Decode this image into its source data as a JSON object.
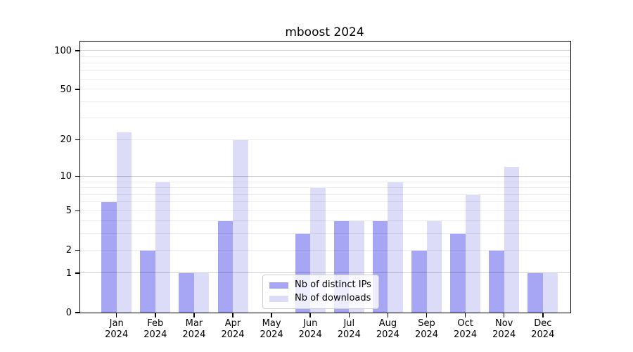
{
  "chart_data": {
    "type": "bar",
    "title": "mboost 2024",
    "months": [
      "Jan",
      "Feb",
      "Mar",
      "Apr",
      "May",
      "Jun",
      "Jul",
      "Aug",
      "Sep",
      "Oct",
      "Nov",
      "Dec"
    ],
    "year": "2024",
    "categories": [
      "Jan 2024",
      "Feb 2024",
      "Mar 2024",
      "Apr 2024",
      "May 2024",
      "Jun 2024",
      "Jul 2024",
      "Aug 2024",
      "Sep 2024",
      "Oct 2024",
      "Nov 2024",
      "Dec 2024"
    ],
    "series": [
      {
        "name": "Nb of distinct IPs",
        "color": "#a6a6f4",
        "values": [
          6,
          2,
          1,
          4,
          0,
          3,
          4,
          4,
          2,
          3,
          2,
          1
        ]
      },
      {
        "name": "Nb of downloads",
        "color": "#dcdcf9",
        "values": [
          23,
          9,
          1,
          20,
          0,
          8,
          4,
          9,
          4,
          7,
          12,
          1
        ]
      }
    ],
    "y_scale": "log1p",
    "y_ticks": [
      0,
      1,
      2,
      5,
      10,
      20,
      50,
      100
    ],
    "grid_major": [
      1,
      10,
      100
    ],
    "grid_minor": [
      2,
      3,
      4,
      5,
      6,
      7,
      8,
      9,
      20,
      30,
      40,
      50,
      60,
      70,
      80,
      90
    ],
    "ylim": [
      0,
      115
    ],
    "xlabel": "",
    "ylabel": "",
    "grid": true,
    "legend_position": "inside-bottom-center",
    "colors": {
      "background": "#ffffff",
      "axis": "#000000",
      "grid_major": "#cccccc",
      "grid_minor": "#ededed"
    }
  }
}
